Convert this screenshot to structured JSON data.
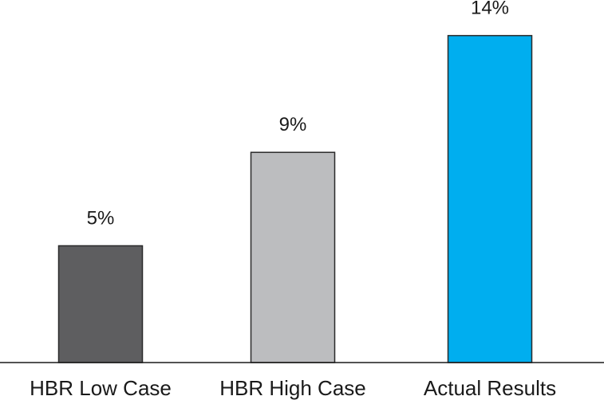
{
  "chart_data": {
    "type": "bar",
    "categories": [
      "HBR Low Case",
      "HBR High Case",
      "Actual Results"
    ],
    "values": [
      5,
      9,
      14
    ],
    "value_labels": [
      "5%",
      "9%",
      "14%"
    ],
    "colors": [
      "#5e5e60",
      "#bcbdbf",
      "#00aeef"
    ],
    "title": "",
    "xlabel": "",
    "ylabel": "",
    "ylim": [
      0,
      14.5
    ],
    "grid": false,
    "legend": "none"
  }
}
